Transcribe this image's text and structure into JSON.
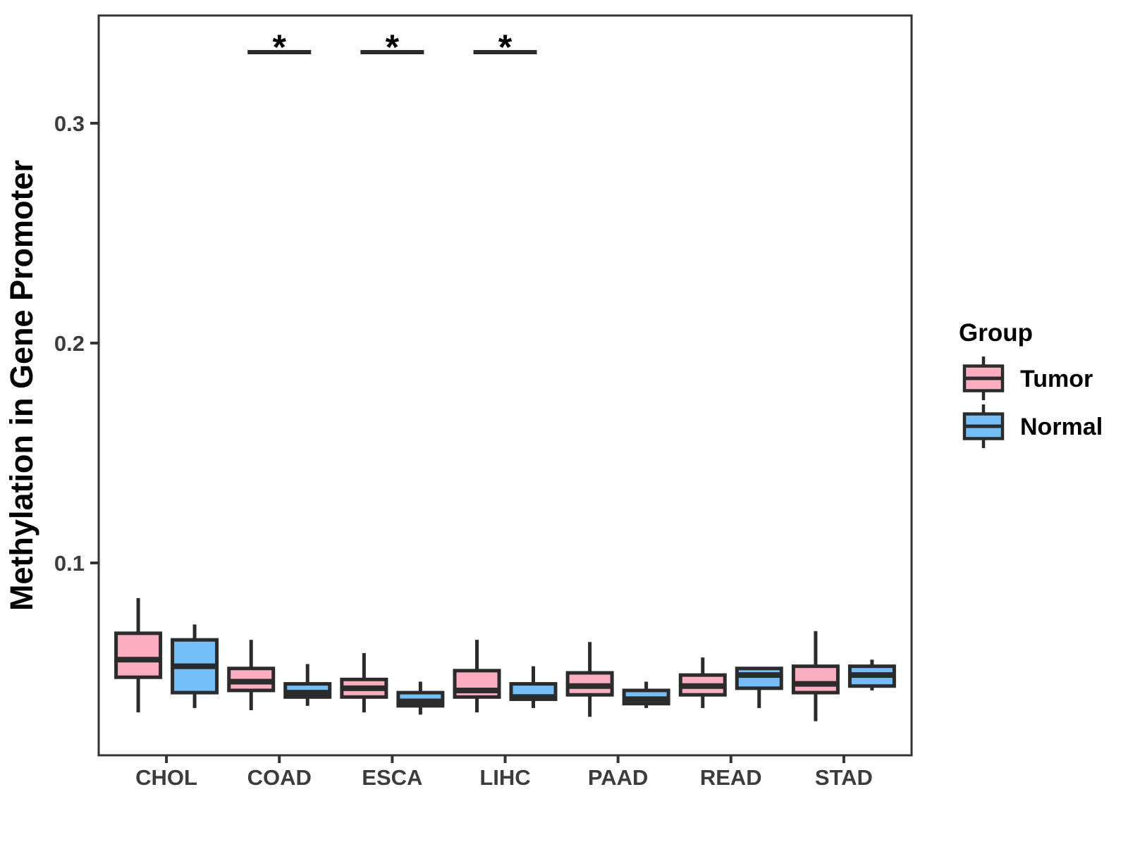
{
  "chart_data": {
    "type": "boxplot",
    "title": "",
    "xlabel": "",
    "ylabel": "Methylation in Gene Promoter",
    "categories": [
      "CHOL",
      "COAD",
      "ESCA",
      "LIHC",
      "PAAD",
      "READ",
      "STAD"
    ],
    "yticks": [
      0.1,
      0.2,
      0.3
    ],
    "ytick_labels": [
      "0.1",
      "0.2",
      "0.3"
    ],
    "ylim": [
      0.0125,
      0.349
    ],
    "grid": "off",
    "legend": {
      "title": "Group",
      "position": "right",
      "entries": [
        {
          "label": "Tumor",
          "color": "#FBAEC0"
        },
        {
          "label": "Normal",
          "color": "#74BFF7"
        }
      ]
    },
    "significance_markers": [
      {
        "category": "COAD",
        "symbol": "*"
      },
      {
        "category": "ESCA",
        "symbol": "*"
      },
      {
        "category": "LIHC",
        "symbol": "*"
      }
    ],
    "series": [
      {
        "name": "Tumor",
        "color": "#FBAEC0",
        "boxes": [
          {
            "category": "CHOL",
            "whisker_low": 0.032,
            "q1": 0.048,
            "median": 0.056,
            "q3": 0.068,
            "whisker_high": 0.084
          },
          {
            "category": "COAD",
            "whisker_low": 0.033,
            "q1": 0.042,
            "median": 0.046,
            "q3": 0.052,
            "whisker_high": 0.065
          },
          {
            "category": "ESCA",
            "whisker_low": 0.032,
            "q1": 0.039,
            "median": 0.043,
            "q3": 0.047,
            "whisker_high": 0.059
          },
          {
            "category": "LIHC",
            "whisker_low": 0.032,
            "q1": 0.039,
            "median": 0.042,
            "q3": 0.051,
            "whisker_high": 0.065
          },
          {
            "category": "PAAD",
            "whisker_low": 0.03,
            "q1": 0.04,
            "median": 0.044,
            "q3": 0.05,
            "whisker_high": 0.064
          },
          {
            "category": "READ",
            "whisker_low": 0.034,
            "q1": 0.04,
            "median": 0.044,
            "q3": 0.049,
            "whisker_high": 0.057
          },
          {
            "category": "STAD",
            "whisker_low": 0.028,
            "q1": 0.041,
            "median": 0.045,
            "q3": 0.053,
            "whisker_high": 0.069
          }
        ]
      },
      {
        "name": "Normal",
        "color": "#74BFF7",
        "boxes": [
          {
            "category": "CHOL",
            "whisker_low": 0.034,
            "q1": 0.041,
            "median": 0.053,
            "q3": 0.065,
            "whisker_high": 0.072
          },
          {
            "category": "COAD",
            "whisker_low": 0.035,
            "q1": 0.039,
            "median": 0.041,
            "q3": 0.045,
            "whisker_high": 0.054
          },
          {
            "category": "ESCA",
            "whisker_low": 0.031,
            "q1": 0.035,
            "median": 0.037,
            "q3": 0.041,
            "whisker_high": 0.046
          },
          {
            "category": "LIHC",
            "whisker_low": 0.034,
            "q1": 0.038,
            "median": 0.039,
            "q3": 0.045,
            "whisker_high": 0.053
          },
          {
            "category": "PAAD",
            "whisker_low": 0.034,
            "q1": 0.036,
            "median": 0.038,
            "q3": 0.042,
            "whisker_high": 0.046
          },
          {
            "category": "READ",
            "whisker_low": 0.034,
            "q1": 0.043,
            "median": 0.049,
            "q3": 0.052,
            "whisker_high": 0.052
          },
          {
            "category": "STAD",
            "whisker_low": 0.042,
            "q1": 0.044,
            "median": 0.049,
            "q3": 0.053,
            "whisker_high": 0.056
          }
        ]
      }
    ],
    "style_colors": {
      "line": "#2B2B2B",
      "panel_border": "#333333",
      "axis_text": "#3C3C3C",
      "title_text": "#000000"
    }
  }
}
